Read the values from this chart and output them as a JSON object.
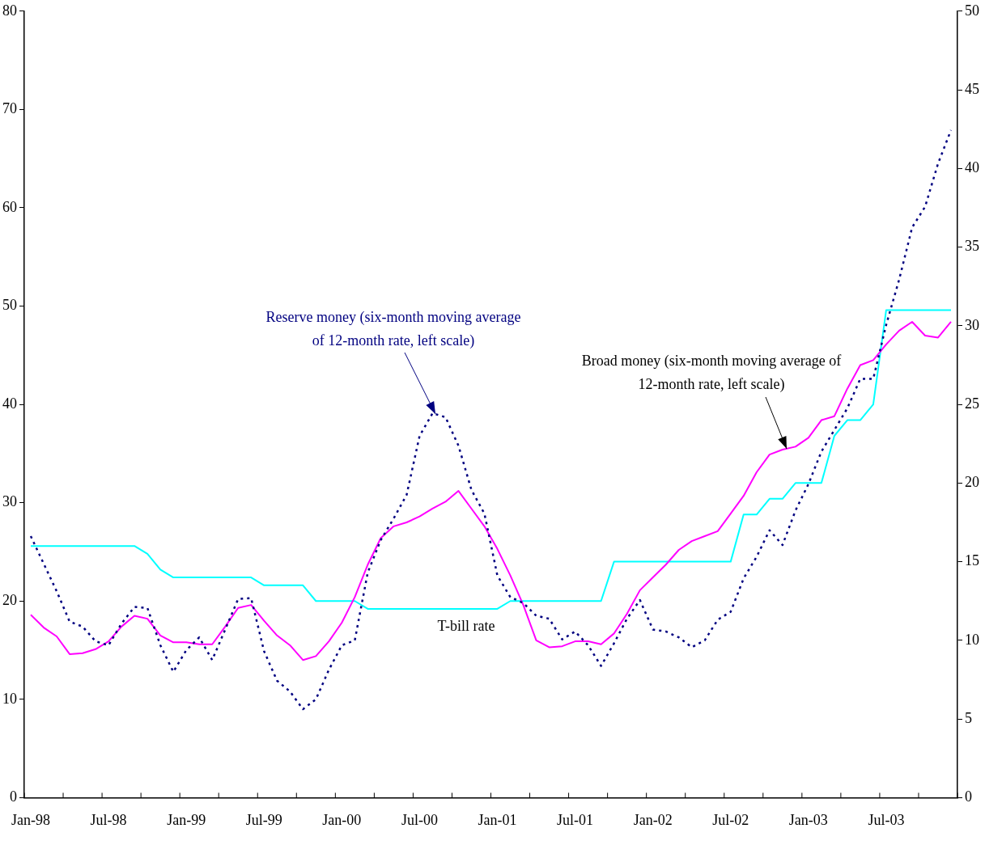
{
  "chart_data": {
    "type": "line",
    "categories": [
      "Jan-98",
      null,
      null,
      null,
      null,
      null,
      "Jul-98",
      null,
      null,
      null,
      null,
      null,
      "Jan-99",
      null,
      null,
      null,
      null,
      null,
      "Jul-99",
      null,
      null,
      null,
      null,
      null,
      "Jan-00",
      null,
      null,
      null,
      null,
      null,
      "Jul-00",
      null,
      null,
      null,
      null,
      null,
      "Jan-01",
      null,
      null,
      null,
      null,
      null,
      "Jul-01",
      null,
      null,
      null,
      null,
      null,
      "Jan-02",
      null,
      null,
      null,
      null,
      null,
      "Jul-02",
      null,
      null,
      null,
      null,
      null,
      "Jan-03",
      null,
      null,
      null,
      null,
      null,
      "Jul-03",
      null,
      null,
      null,
      null,
      null
    ],
    "series": [
      {
        "name": "Reserve money (six-month moving average of 12-month rate, left scale)",
        "color": "#000080",
        "line_style": "dotted",
        "values": [
          26.6,
          23.8,
          21.0,
          17.9,
          17.4,
          15.9,
          15.5,
          17.7,
          19.4,
          19.3,
          15.5,
          12.8,
          15.0,
          16.3,
          14.0,
          17.1,
          20.2,
          20.3,
          14.9,
          11.9,
          10.8,
          9.0,
          10.0,
          13.0,
          15.5,
          16.0,
          22.9,
          26.2,
          28.4,
          30.8,
          36.8,
          39.1,
          38.7,
          35.8,
          31.3,
          28.9,
          22.6,
          20.4,
          19.8,
          18.5,
          18.2,
          16.1,
          16.9,
          15.5,
          13.4,
          15.7,
          18.2,
          20.1,
          17.1,
          16.9,
          16.3,
          15.3,
          16.0,
          18.1,
          18.9,
          22.3,
          24.5,
          27.2,
          25.7,
          29.2,
          31.9,
          35.2,
          37.4,
          39.6,
          42.6,
          42.6,
          48.1,
          52.7,
          58.0,
          60.1,
          64.5,
          67.9
        ]
      },
      {
        "name": "Broad money (six-month moving average of 12-month rate, left scale)",
        "color": "#ff00ff",
        "line_style": "solid",
        "values": [
          18.6,
          17.3,
          16.4,
          14.6,
          14.7,
          15.1,
          15.9,
          17.4,
          18.5,
          18.2,
          16.5,
          15.8,
          15.8,
          15.6,
          15.6,
          17.4,
          19.3,
          19.6,
          18.0,
          16.5,
          15.5,
          14.0,
          14.4,
          15.9,
          17.8,
          20.4,
          23.7,
          26.4,
          27.6,
          28.0,
          28.6,
          29.4,
          30.1,
          31.2,
          29.4,
          27.6,
          25.3,
          22.6,
          19.6,
          16.0,
          15.3,
          15.4,
          15.9,
          15.9,
          15.6,
          16.7,
          18.7,
          21.1,
          22.4,
          23.7,
          25.2,
          26.1,
          26.6,
          27.1,
          28.9,
          30.7,
          33.1,
          34.9,
          35.4,
          35.7,
          36.6,
          38.4,
          38.8,
          41.6,
          44.0,
          44.5,
          46.1,
          47.5,
          48.4,
          47.0,
          46.8,
          48.4
        ]
      },
      {
        "name": "T-bill rate",
        "color": "#00ffff",
        "line_style": "solid",
        "axis": "y2",
        "values": [
          16,
          16,
          16,
          16,
          16,
          16,
          16,
          16,
          16,
          15.5,
          14.5,
          14,
          14,
          14,
          14,
          14,
          14,
          14,
          13.5,
          13.5,
          13.5,
          13.5,
          12.5,
          12.5,
          12.5,
          12.5,
          12,
          12,
          12,
          12,
          12,
          12,
          12,
          12,
          12,
          12,
          12,
          12.5,
          12.5,
          12.5,
          12.5,
          12.5,
          12.5,
          12.5,
          12.5,
          15,
          15,
          15,
          15,
          15,
          15,
          15,
          15,
          15,
          15,
          18,
          18,
          19,
          19,
          20,
          20,
          20,
          23,
          24,
          24,
          25,
          31,
          31,
          31,
          31,
          31,
          31
        ]
      }
    ],
    "ylim": [
      0,
      80
    ],
    "yticks": [
      0,
      10,
      20,
      30,
      40,
      50,
      60,
      70,
      80
    ],
    "y2lim": [
      0,
      50
    ],
    "y2ticks": [
      0,
      5,
      10,
      15,
      20,
      25,
      30,
      35,
      40,
      45,
      50
    ],
    "marker": "none",
    "legend": false
  }
}
